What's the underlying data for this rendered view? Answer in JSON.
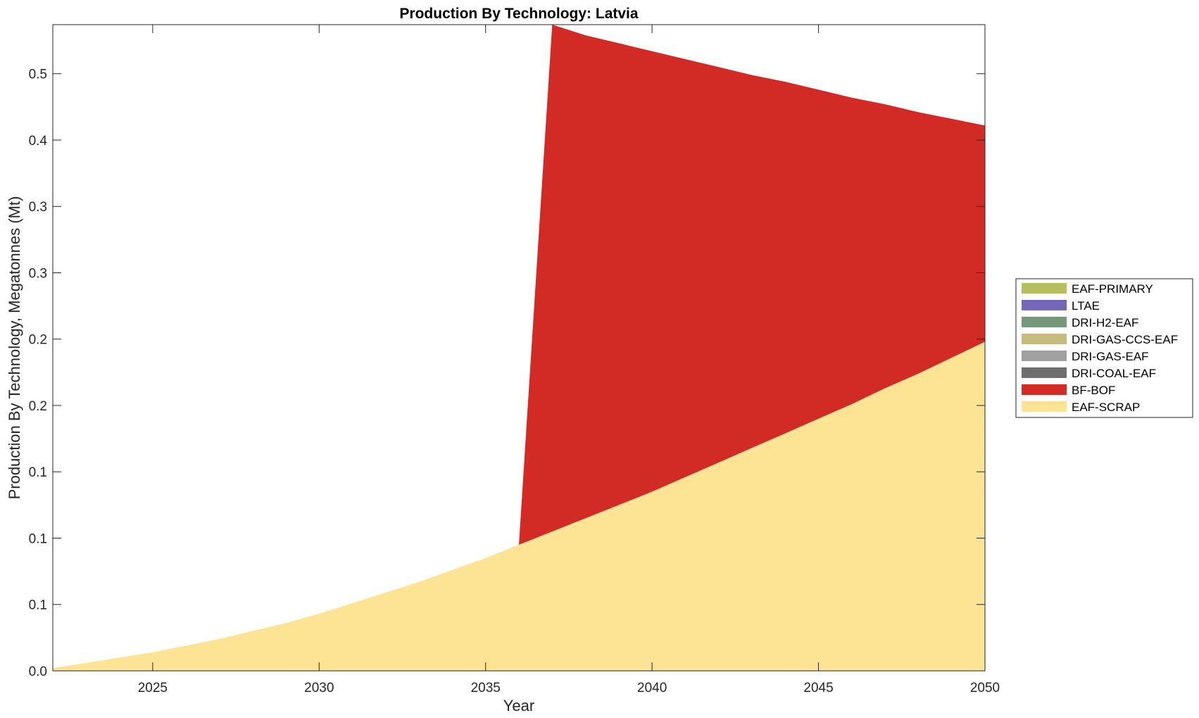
{
  "chart_data": {
    "type": "area",
    "title": "Production By Technology: Latvia",
    "xlabel": "Year",
    "ylabel": "Production By Technology, Megatonnes (Mt)",
    "xlim": [
      2022,
      2050
    ],
    "ylim": [
      0,
      0.487
    ],
    "x_ticks": [
      2025,
      2030,
      2035,
      2040,
      2045,
      2050
    ],
    "y_ticks": [
      {
        "value": 0.0,
        "label": "0.0"
      },
      {
        "value": 0.05,
        "label": "0.1"
      },
      {
        "value": 0.1,
        "label": "0.1"
      },
      {
        "value": 0.15,
        "label": "0.1"
      },
      {
        "value": 0.2,
        "label": "0.2"
      },
      {
        "value": 0.25,
        "label": "0.2"
      },
      {
        "value": 0.3,
        "label": "0.3"
      },
      {
        "value": 0.35,
        "label": "0.3"
      },
      {
        "value": 0.4,
        "label": "0.4"
      },
      {
        "value": 0.45,
        "label": "0.5"
      }
    ],
    "grid": false,
    "legend_position": "right",
    "x": [
      2022,
      2023,
      2024,
      2025,
      2026,
      2027,
      2028,
      2029,
      2030,
      2031,
      2032,
      2033,
      2034,
      2035,
      2036,
      2037,
      2038,
      2039,
      2040,
      2041,
      2042,
      2043,
      2044,
      2045,
      2046,
      2047,
      2048,
      2049,
      2050
    ],
    "series": [
      {
        "name": "EAF-SCRAP",
        "color": "#FDE394",
        "values": [
          0.002,
          0.006,
          0.01,
          0.014,
          0.019,
          0.024,
          0.03,
          0.036,
          0.043,
          0.051,
          0.059,
          0.067,
          0.076,
          0.085,
          0.095,
          0.105,
          0.115,
          0.125,
          0.135,
          0.146,
          0.157,
          0.168,
          0.179,
          0.19,
          0.201,
          0.213,
          0.224,
          0.236,
          0.248
        ]
      },
      {
        "name": "BF-BOF",
        "color": "#D22B26",
        "values": [
          0,
          0,
          0,
          0,
          0,
          0,
          0,
          0,
          0,
          0,
          0,
          0,
          0,
          0,
          0,
          0.382,
          0.364,
          0.348,
          0.332,
          0.315,
          0.298,
          0.281,
          0.265,
          0.248,
          0.231,
          0.214,
          0.197,
          0.18,
          0.163
        ]
      },
      {
        "name": "DRI-COAL-EAF",
        "color": "#6E6E6E",
        "values": [
          0,
          0,
          0,
          0,
          0,
          0,
          0,
          0,
          0,
          0,
          0,
          0,
          0,
          0,
          0,
          0,
          0,
          0,
          0,
          0,
          0,
          0,
          0,
          0,
          0,
          0,
          0,
          0,
          0
        ]
      },
      {
        "name": "DRI-GAS-EAF",
        "color": "#A0A0A0",
        "values": [
          0,
          0,
          0,
          0,
          0,
          0,
          0,
          0,
          0,
          0,
          0,
          0,
          0,
          0,
          0,
          0,
          0,
          0,
          0,
          0,
          0,
          0,
          0,
          0,
          0,
          0,
          0,
          0,
          0
        ]
      },
      {
        "name": "DRI-GAS-CCS-EAF",
        "color": "#C5BB7F",
        "values": [
          0,
          0,
          0,
          0,
          0,
          0,
          0,
          0,
          0,
          0,
          0,
          0,
          0,
          0,
          0,
          0,
          0,
          0,
          0,
          0,
          0,
          0,
          0,
          0,
          0,
          0,
          0,
          0,
          0
        ]
      },
      {
        "name": "DRI-H2-EAF",
        "color": "#749878",
        "values": [
          0,
          0,
          0,
          0,
          0,
          0,
          0,
          0,
          0,
          0,
          0,
          0,
          0,
          0,
          0,
          0,
          0,
          0,
          0,
          0,
          0,
          0,
          0,
          0,
          0,
          0,
          0,
          0,
          0
        ]
      },
      {
        "name": "LTAE",
        "color": "#7466B8",
        "values": [
          0,
          0,
          0,
          0,
          0,
          0,
          0,
          0,
          0,
          0,
          0,
          0,
          0,
          0,
          0,
          0,
          0,
          0,
          0,
          0,
          0,
          0,
          0,
          0,
          0,
          0,
          0,
          0,
          0
        ]
      },
      {
        "name": "EAF-PRIMARY",
        "color": "#B6BE60",
        "values": [
          0,
          0,
          0,
          0,
          0,
          0,
          0,
          0,
          0,
          0,
          0,
          0,
          0,
          0,
          0,
          0,
          0,
          0,
          0,
          0,
          0,
          0,
          0,
          0,
          0,
          0,
          0,
          0,
          0
        ]
      }
    ],
    "legend_order": [
      "EAF-PRIMARY",
      "LTAE",
      "DRI-H2-EAF",
      "DRI-GAS-CCS-EAF",
      "DRI-GAS-EAF",
      "DRI-COAL-EAF",
      "BF-BOF",
      "EAF-SCRAP"
    ]
  }
}
